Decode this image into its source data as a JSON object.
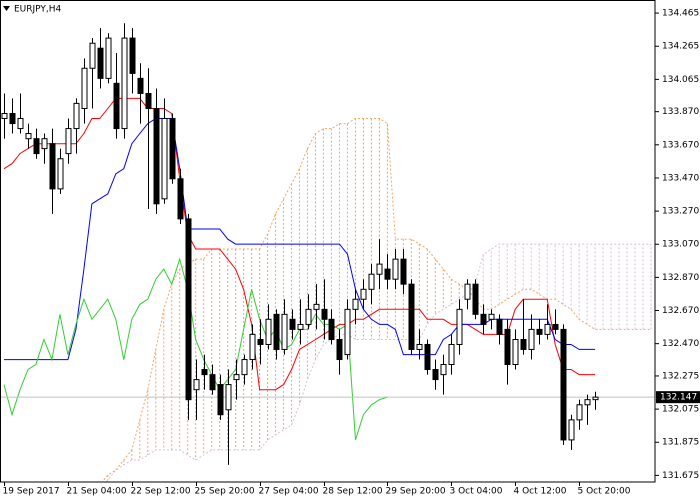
{
  "chart_data": {
    "type": "candlestick",
    "title": "EURJPY,H4",
    "categories": [
      "19 Sep 2017",
      null,
      null,
      null,
      null,
      null,
      null,
      null,
      "21 Sep 04:00",
      null,
      null,
      null,
      null,
      null,
      null,
      null,
      "22 Sep 12:00",
      null,
      null,
      null,
      null,
      null,
      null,
      null,
      "25 Sep 20:00",
      null,
      null,
      null,
      null,
      null,
      null,
      null,
      "27 Sep 04:00",
      null,
      null,
      null,
      null,
      null,
      null,
      null,
      "28 Sep 12:00",
      null,
      null,
      null,
      null,
      null,
      null,
      null,
      "29 Sep 20:00",
      null,
      null,
      null,
      null,
      null,
      null,
      null,
      "3 Oct 04:00",
      null,
      null,
      null,
      null,
      null,
      null,
      null,
      "4 Oct 12:00",
      null,
      null,
      null,
      null,
      null,
      null,
      null,
      "5 Oct 20:00",
      null,
      null,
      null,
      null,
      null,
      null,
      null,
      null,
      null
    ],
    "open": [
      133.829,
      133.859,
      133.768,
      133.707,
      133.707,
      133.647,
      133.677,
      133.404,
      133.617,
      133.768,
      133.889,
      134.132,
      134.253,
      134.071,
      134.041,
      133.768,
      134.314,
      134.071,
      133.98,
      133.889,
      133.344,
      133.829,
      133.465,
      133.223,
      132.192,
      132.314,
      132.283,
      132.223,
      132.071,
      132.253,
      132.283,
      132.374,
      132.495,
      132.465,
      132.647,
      132.435,
      132.617,
      132.556,
      132.586,
      132.677,
      132.677,
      132.617,
      132.495,
      132.404,
      132.677,
      132.738,
      132.798,
      132.889,
      132.92,
      132.859,
      132.98,
      132.829,
      132.435,
      132.465,
      132.314,
      132.283,
      132.344,
      132.465,
      132.738,
      132.829,
      132.647,
      132.617,
      132.617,
      132.556,
      132.344,
      132.495,
      132.435,
      132.556,
      132.526,
      132.586,
      132.556,
      131.889,
      132.01,
      132.101,
      132.132,
      null,
      null,
      null,
      null,
      null,
      null,
      null
    ],
    "high": [
      133.98,
      133.95,
      133.98,
      133.798,
      133.768,
      133.738,
      133.768,
      133.647,
      133.829,
      133.95,
      134.192,
      134.314,
      134.374,
      134.344,
      134.223,
      134.404,
      134.374,
      134.162,
      134.132,
      134.01,
      133.95,
      133.859,
      133.526,
      133.253,
      132.374,
      132.404,
      132.344,
      132.283,
      132.314,
      132.374,
      132.404,
      132.586,
      132.617,
      132.707,
      132.677,
      132.738,
      132.677,
      132.738,
      132.768,
      132.829,
      132.859,
      132.677,
      132.556,
      132.738,
      132.798,
      132.859,
      132.95,
      133.101,
      133.01,
      133.041,
      133.041,
      132.859,
      132.556,
      132.495,
      132.374,
      132.404,
      132.526,
      132.738,
      132.859,
      132.859,
      132.707,
      132.677,
      132.647,
      132.617,
      132.556,
      132.738,
      132.647,
      132.617,
      132.707,
      132.677,
      132.586,
      132.041,
      132.132,
      132.162,
      132.18,
      null,
      null,
      null,
      null,
      null,
      null,
      null
    ],
    "low": [
      133.707,
      133.738,
      133.738,
      133.647,
      133.586,
      133.556,
      133.253,
      133.374,
      133.556,
      133.617,
      133.798,
      133.889,
      134.01,
      134.041,
      133.707,
      133.707,
      133.98,
      133.798,
      133.283,
      133.253,
      133.314,
      133.435,
      133.192,
      132.01,
      132.01,
      132.192,
      132.162,
      132.01,
      131.738,
      132.132,
      132.223,
      132.314,
      132.344,
      132.435,
      132.374,
      132.404,
      132.495,
      132.465,
      132.556,
      132.556,
      132.495,
      132.465,
      132.283,
      132.374,
      132.586,
      132.677,
      132.707,
      132.798,
      132.798,
      132.798,
      132.768,
      132.404,
      132.374,
      132.283,
      132.192,
      132.162,
      132.283,
      132.404,
      132.677,
      132.617,
      132.526,
      132.556,
      132.465,
      132.223,
      132.314,
      132.404,
      132.374,
      132.465,
      132.495,
      132.526,
      131.859,
      131.829,
      131.95,
      131.98,
      132.071,
      null,
      null,
      null,
      null,
      null,
      null,
      null
    ],
    "close": [
      133.859,
      133.798,
      133.829,
      133.738,
      133.617,
      133.707,
      133.404,
      133.586,
      133.768,
      133.92,
      134.132,
      134.283,
      134.071,
      134.314,
      133.768,
      134.314,
      134.101,
      133.98,
      133.889,
      133.314,
      133.829,
      133.465,
      133.223,
      132.132,
      132.253,
      132.283,
      132.192,
      132.041,
      132.223,
      132.283,
      132.374,
      132.526,
      132.465,
      132.617,
      132.435,
      132.647,
      132.556,
      132.586,
      132.677,
      132.707,
      132.617,
      132.495,
      132.374,
      132.677,
      132.738,
      132.798,
      132.889,
      132.95,
      132.859,
      132.98,
      132.829,
      132.435,
      132.465,
      132.314,
      132.253,
      132.344,
      132.465,
      132.677,
      132.829,
      132.647,
      132.586,
      132.647,
      132.526,
      132.344,
      132.495,
      132.435,
      132.556,
      132.526,
      132.586,
      132.556,
      131.889,
      132.01,
      132.101,
      132.132,
      132.147,
      null,
      null,
      null,
      null,
      null,
      null,
      null
    ],
    "bull_color": "#ffffff",
    "bear_color": "#000000",
    "series": [
      {
        "color": "#ff0000",
        "values": [
          133.526,
          133.556,
          133.617,
          133.647,
          133.677,
          133.677,
          133.677,
          133.677,
          133.677,
          133.677,
          133.738,
          133.829,
          133.829,
          133.889,
          133.95,
          133.95,
          133.95,
          133.95,
          133.889,
          133.889,
          133.889,
          133.859,
          133.465,
          133.132,
          133.041,
          133.041,
          133.041,
          133.041,
          132.98,
          132.92,
          132.798,
          132.586,
          132.192,
          132.192,
          132.192,
          132.223,
          132.314,
          132.435,
          132.465,
          132.495,
          132.526,
          132.556,
          132.586,
          132.586,
          132.617,
          132.617,
          132.647,
          132.677,
          132.677,
          132.677,
          132.677,
          132.677,
          132.677,
          132.617,
          132.617,
          132.617,
          132.586,
          132.586,
          132.586,
          132.556,
          132.526,
          132.526,
          132.526,
          132.526,
          132.677,
          132.738,
          132.738,
          132.738,
          132.738,
          132.465,
          132.314,
          132.314,
          132.283,
          132.283,
          132.283,
          null,
          null,
          null,
          null,
          null,
          null,
          null
        ]
      },
      {
        "color": "#0000ff",
        "values": [
          132.374,
          132.374,
          132.374,
          132.374,
          132.374,
          132.374,
          132.374,
          132.374,
          132.374,
          132.556,
          132.92,
          133.314,
          133.344,
          133.374,
          133.495,
          133.526,
          133.677,
          133.738,
          133.798,
          133.829,
          133.829,
          133.829,
          133.526,
          133.162,
          133.162,
          133.162,
          133.162,
          133.162,
          133.101,
          133.071,
          133.071,
          133.071,
          133.071,
          133.071,
          133.071,
          133.071,
          133.071,
          133.071,
          133.071,
          133.071,
          133.071,
          133.071,
          133.071,
          133.01,
          132.798,
          132.677,
          132.617,
          132.586,
          132.586,
          132.556,
          132.404,
          132.404,
          132.404,
          132.404,
          132.404,
          132.495,
          132.526,
          132.586,
          132.586,
          132.586,
          132.586,
          132.617,
          132.617,
          132.617,
          132.617,
          132.617,
          132.617,
          132.617,
          132.617,
          132.495,
          132.465,
          132.465,
          132.435,
          132.435,
          132.435,
          null,
          null,
          null,
          null,
          null,
          null,
          null
        ]
      },
      {
        "color": "#32cd32",
        "values": [
          132.223,
          132.041,
          132.192,
          132.314,
          132.344,
          132.495,
          132.374,
          132.647,
          132.404,
          132.586,
          132.738,
          132.617,
          132.677,
          132.738,
          132.617,
          132.374,
          132.617,
          132.707,
          132.738,
          132.859,
          132.92,
          132.829,
          132.98,
          132.798,
          132.495,
          132.374,
          132.283,
          132.192,
          132.253,
          132.314,
          132.556,
          132.798,
          132.617,
          132.495,
          132.556,
          132.435,
          132.465,
          132.556,
          132.556,
          132.647,
          132.586,
          132.586,
          132.556,
          132.586,
          131.889,
          132.041,
          132.101,
          132.132,
          132.147,
          null,
          null,
          null,
          null,
          null,
          null,
          null,
          null,
          null,
          null,
          null,
          null,
          null,
          null,
          null,
          null,
          null,
          null,
          null,
          null,
          null,
          null,
          null,
          null,
          null,
          null,
          null,
          null,
          null,
          null,
          null,
          null,
          null
        ]
      }
    ],
    "cloud": [
      {
        "color": "#f4a460",
        "values": [
          null,
          null,
          null,
          null,
          null,
          null,
          null,
          null,
          null,
          null,
          null,
          131.586,
          131.617,
          131.677,
          131.707,
          131.768,
          131.829,
          132.01,
          132.192,
          132.435,
          132.677,
          132.829,
          132.92,
          132.95,
          132.98,
          132.98,
          133.041,
          133.041,
          133.041,
          133.041,
          133.041,
          133.041,
          133.041,
          133.132,
          133.253,
          133.344,
          133.435,
          133.526,
          133.647,
          133.738,
          133.768,
          133.768,
          133.798,
          133.798,
          133.829,
          133.829,
          133.829,
          133.829,
          133.798,
          133.101,
          133.101,
          133.101,
          133.071,
          133.041,
          132.98,
          132.92,
          132.859,
          132.829,
          132.798,
          132.738,
          132.677,
          132.677,
          132.707,
          132.738,
          132.768,
          132.798,
          132.798,
          132.768,
          132.738,
          132.738,
          132.707,
          132.677,
          132.617,
          132.586,
          132.556,
          132.556,
          132.556,
          132.556,
          132.556,
          132.556,
          132.556,
          132.556
        ]
      },
      {
        "color": "#d8bfd8",
        "values": [
          null,
          null,
          null,
          null,
          null,
          null,
          null,
          null,
          null,
          null,
          null,
          131.556,
          131.586,
          131.647,
          131.707,
          131.738,
          131.768,
          131.768,
          131.798,
          131.829,
          131.829,
          131.829,
          131.829,
          131.798,
          131.768,
          131.798,
          131.829,
          131.829,
          131.829,
          131.829,
          131.829,
          131.829,
          131.829,
          131.889,
          131.92,
          131.95,
          131.98,
          132.101,
          132.253,
          132.374,
          132.465,
          132.495,
          132.526,
          132.526,
          132.495,
          132.495,
          132.495,
          132.495,
          132.495,
          132.495,
          132.495,
          132.495,
          132.495,
          132.586,
          132.647,
          132.677,
          132.707,
          132.738,
          132.768,
          132.829,
          133.01,
          133.041,
          133.071,
          133.071,
          133.071,
          133.071,
          133.071,
          133.071,
          133.071,
          133.071,
          133.071,
          133.071,
          133.071,
          133.071,
          133.071,
          133.071,
          133.071,
          133.071,
          133.071,
          133.071,
          133.071,
          133.071
        ]
      }
    ],
    "current_price": 132.147,
    "ylim": [
      131.635,
      134.544
    ],
    "yticks": [
      134.465,
      134.265,
      134.065,
      {
        "value": 133.87,
        "label": "133.870"
      },
      {
        "value": 133.67,
        "label": "133.670"
      },
      {
        "value": 133.47,
        "label": "133.470"
      },
      {
        "value": 133.27,
        "label": "133.270"
      },
      {
        "value": 133.07,
        "label": "133.070"
      },
      {
        "value": 132.87,
        "label": "132.870"
      },
      {
        "value": 132.67,
        "label": "132.670"
      },
      {
        "value": 132.47,
        "label": "132.470"
      },
      132.275,
      132.075,
      131.875,
      131.675
    ],
    "grid": false
  }
}
